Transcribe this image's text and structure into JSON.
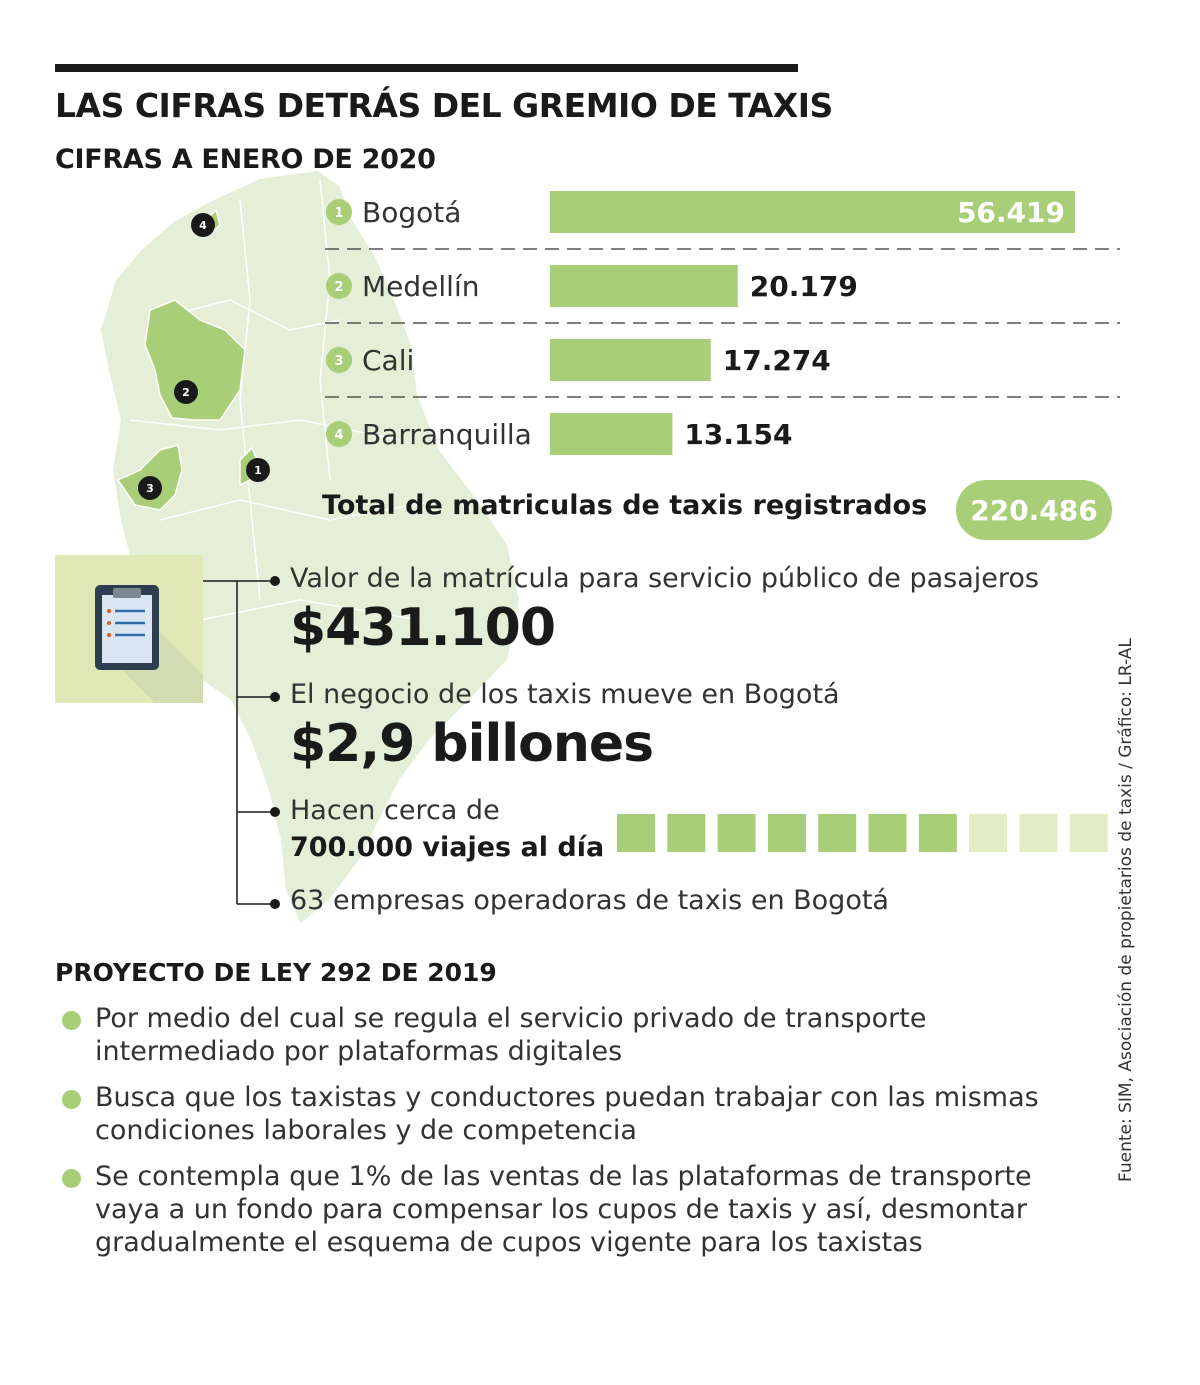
{
  "header": {
    "title": "LAS CIFRAS DETRÁS DEL GREMIO DE TAXIS",
    "subtitle": "CIFRAS A ENERO DE 2020"
  },
  "colors": {
    "bar": "#a8cf78",
    "map_light": "#e5eed6",
    "map_highlight": "#a8cf78",
    "square_filled": "#a8cf78",
    "square_empty": "#e2edc6",
    "text": "#1a1a1a"
  },
  "map_markers": [
    "1",
    "2",
    "3",
    "4"
  ],
  "chart_data": {
    "type": "bar",
    "orientation": "horizontal",
    "numbers": [
      "1",
      "2",
      "3",
      "4"
    ],
    "categories": [
      "Bogotá",
      "Medellín",
      "Cali",
      "Barranquilla"
    ],
    "values": [
      56419,
      20179,
      17274,
      13154
    ],
    "value_labels": [
      "56.419",
      "20.179",
      "17.274",
      "13.154"
    ],
    "xlim": [
      0,
      56419
    ],
    "grid": false,
    "separators": "dashed"
  },
  "total": {
    "label": "Total de matriculas de taxis registrados",
    "value": "220.486"
  },
  "facts": {
    "icon": "clipboard-icon",
    "registration_label": "Valor de la matrícula para servicio público de pasajeros",
    "registration_value": "$431.100",
    "business_label": "El negocio de los taxis mueve en Bogotá",
    "business_value": "$2,9 billones",
    "trips_label_line1": "Hacen cerca de",
    "trips_label_line2": "700.000 viajes al día",
    "trip_squares": {
      "filled": 7,
      "total": 10
    },
    "companies": "63 empresas operadoras de taxis en Bogotá"
  },
  "law": {
    "title": "PROYECTO DE LEY 292 DE 2019",
    "items": [
      "Por medio del cual se regula el servicio privado de transporte intermediado por plataformas digitales",
      "Busca que los taxistas y conductores puedan trabajar con las mismas condiciones laborales y de competencia",
      "Se contempla que 1% de las ventas de las plataformas de transporte vaya a un fondo para compensar los cupos de taxis y así, desmontar gradualmente el esquema de cupos vigente para los taxistas"
    ]
  },
  "source": "Fuente: SIM, Asociación de propietarios de taxis / Gráfico: LR-AL"
}
